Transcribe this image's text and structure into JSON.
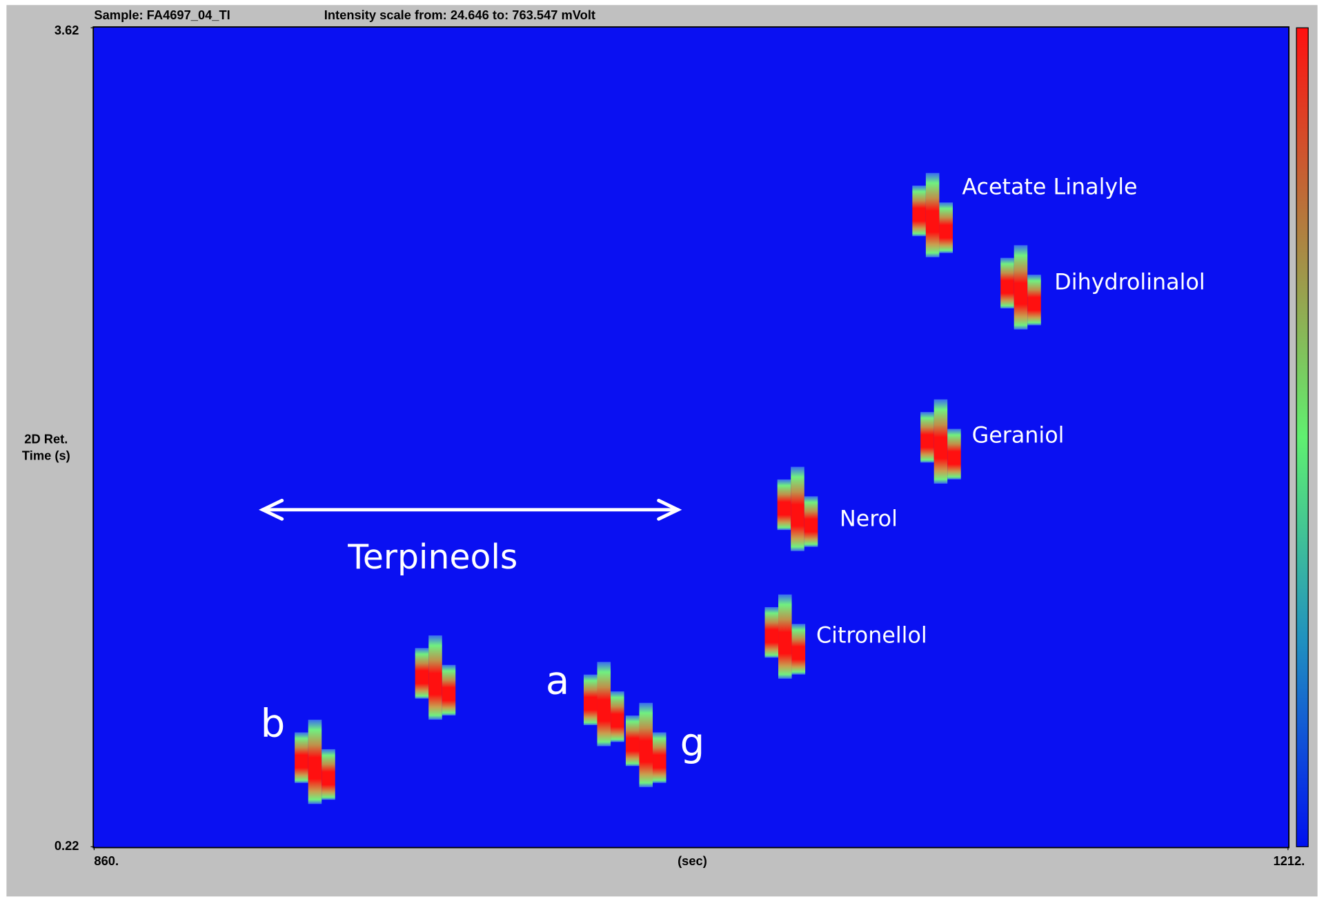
{
  "chart_data": {
    "type": "peak-map",
    "sample": "Sample: FA4697_04_TI",
    "intensity_scale": "Intensity scale from: 24.646 to: 763.547 mVolt",
    "ylabel_lines": [
      "2D Ret.",
      "Time (s)"
    ],
    "xlabel": "(sec)",
    "xlim": [
      860,
      1212
    ],
    "xticks": [
      {
        "value": 860,
        "label": "860."
      },
      {
        "value": 1212,
        "label": "1212."
      }
    ],
    "ylim": [
      0.22,
      3.62
    ],
    "yticks": [
      3.62,
      0.22
    ],
    "group_annotation": "Terpineols",
    "peaks": [
      {
        "label": "b",
        "x": 925.1,
        "y": 0.59
      },
      {
        "x": 960.6,
        "y": 0.94
      },
      {
        "label": "a",
        "x": 1010.3,
        "y": 0.83
      },
      {
        "label": "g",
        "x": 1022.7,
        "y": 0.66
      },
      {
        "label": "Citronellol",
        "x": 1063.7,
        "y": 1.11
      },
      {
        "label": "Nerol",
        "x": 1067.4,
        "y": 1.64
      },
      {
        "label": "Geraniol",
        "x": 1109.6,
        "y": 1.92
      },
      {
        "label": "Acetate Linalyle",
        "x": 1107.2,
        "y": 2.86
      },
      {
        "label": "Dihydrolinalol",
        "x": 1133.2,
        "y": 2.56
      }
    ]
  }
}
